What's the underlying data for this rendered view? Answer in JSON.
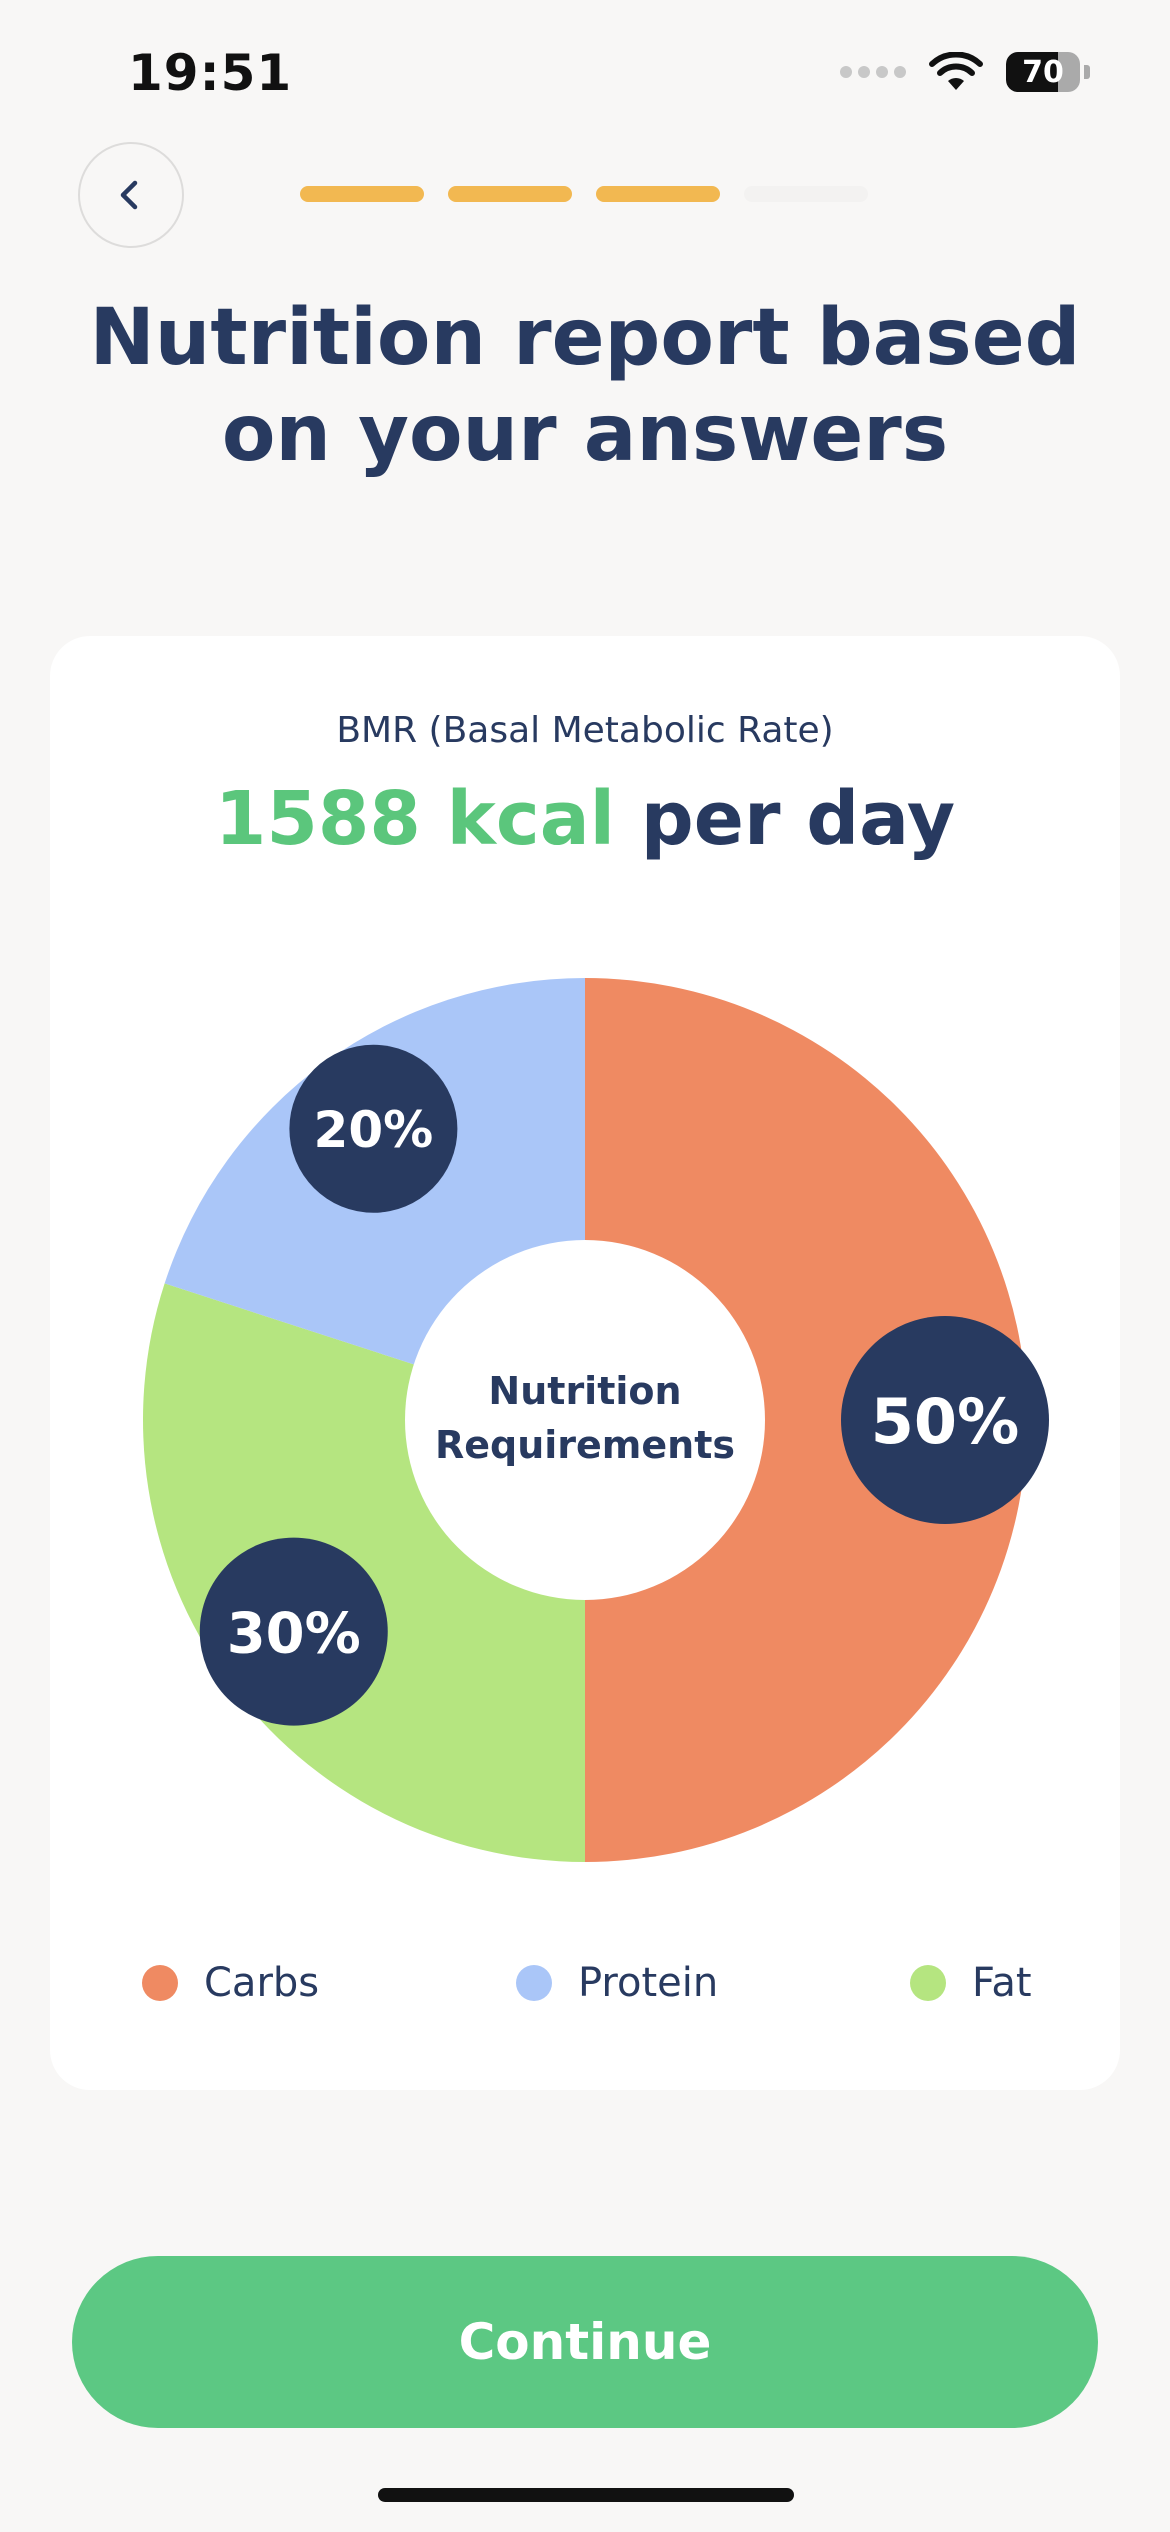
{
  "status_bar": {
    "time": "19:51",
    "battery": "70",
    "battery_level": 0.7
  },
  "progress": {
    "total_steps": 4,
    "completed_steps": 3,
    "active_color": "#f2b851",
    "inactive_color": "#f3f2f1"
  },
  "title": "Nutrition report based on your answers",
  "bmr": {
    "label": "BMR (Basal Metabolic Rate)",
    "value": "1588 kcal",
    "suffix": " per day"
  },
  "chart_data": {
    "type": "pie",
    "center_label": [
      "Nutrition",
      "Requirements"
    ],
    "slices": [
      {
        "name": "Carbs",
        "value": 50,
        "label": "50%",
        "color": "#ef8a62"
      },
      {
        "name": "Fat",
        "value": 30,
        "label": "30%",
        "color": "#b5e580"
      },
      {
        "name": "Protein",
        "value": 20,
        "label": "20%",
        "color": "#aac6f8"
      }
    ],
    "legend": [
      {
        "label": "Carbs",
        "color": "#ef8a62"
      },
      {
        "label": "Protein",
        "color": "#aac6f8"
      },
      {
        "label": "Fat",
        "color": "#b5e580"
      }
    ],
    "legend_placement": "bottom",
    "label_bubble_color": "#283a60"
  },
  "continue_label": "Continue",
  "icons": {
    "back": "chevron-left-icon",
    "wifi": "wifi-icon",
    "battery": "battery-icon"
  }
}
